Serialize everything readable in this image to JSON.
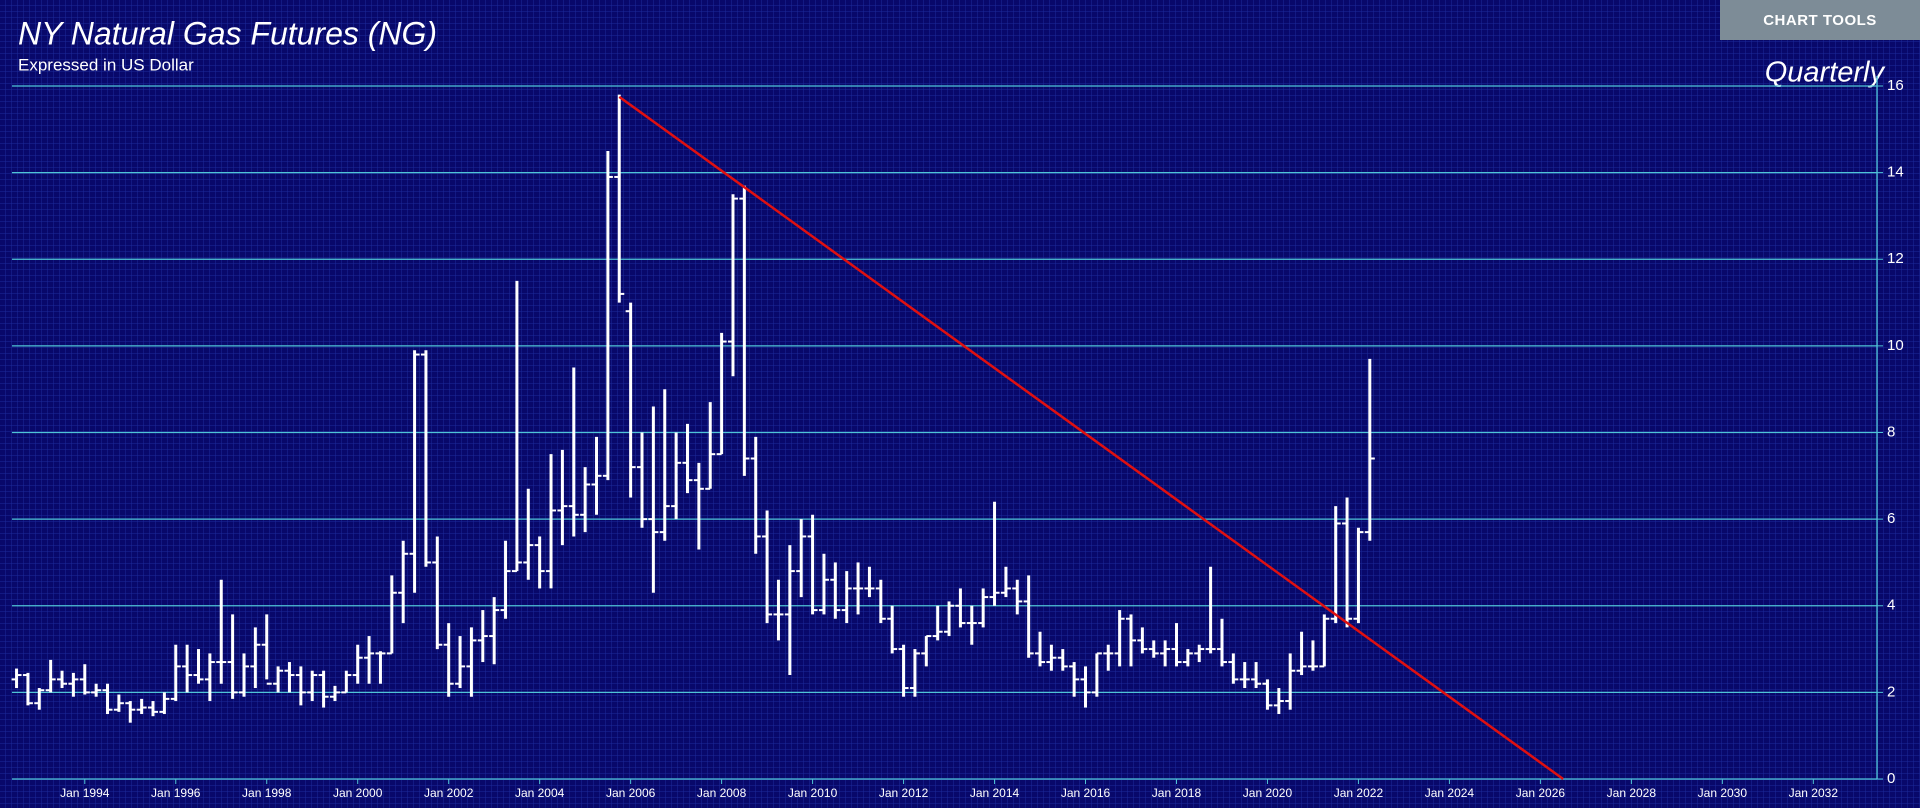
{
  "chart_data": {
    "type": "ohlc",
    "title": "NY Natural Gas Futures (NG)",
    "subtitle": "Expressed in US Dollar",
    "period": "Quarterly",
    "button": "CHART TOOLS",
    "color": "#ffffff",
    "grid": true,
    "x": [
      1992.5,
      1992.75,
      1993,
      1993.25,
      1993.5,
      1993.75,
      1994,
      1994.25,
      1994.5,
      1994.75,
      1995,
      1995.25,
      1995.5,
      1995.75,
      1996,
      1996.25,
      1996.5,
      1996.75,
      1997,
      1997.25,
      1997.5,
      1997.75,
      1998,
      1998.25,
      1998.5,
      1998.75,
      1999,
      1999.25,
      1999.5,
      1999.75,
      2000,
      2000.25,
      2000.5,
      2000.75,
      2001,
      2001.25,
      2001.5,
      2001.75,
      2002,
      2002.25,
      2002.5,
      2002.75,
      2003,
      2003.25,
      2003.5,
      2003.75,
      2004,
      2004.25,
      2004.5,
      2004.75,
      2005,
      2005.25,
      2005.5,
      2005.75,
      2006,
      2006.25,
      2006.5,
      2006.75,
      2007,
      2007.25,
      2007.5,
      2007.75,
      2008,
      2008.25,
      2008.5,
      2008.75,
      2009,
      2009.25,
      2009.5,
      2009.75,
      2010,
      2010.25,
      2010.5,
      2010.75,
      2011,
      2011.25,
      2011.5,
      2011.75,
      2012,
      2012.25,
      2012.5,
      2012.75,
      2013,
      2013.25,
      2013.5,
      2013.75,
      2014,
      2014.25,
      2014.5,
      2014.75,
      2015,
      2015.25,
      2015.5,
      2015.75,
      2016,
      2016.25,
      2016.5,
      2016.75,
      2017,
      2017.25,
      2017.5,
      2017.75,
      2018,
      2018.25,
      2018.5,
      2018.75,
      2019,
      2019.25,
      2019.5,
      2019.75,
      2020,
      2020.25,
      2020.5,
      2020.75,
      2021,
      2021.25,
      2021.5,
      2021.75,
      2022,
      2022.25
    ],
    "open": [
      2.3,
      2.4,
      1.75,
      2.05,
      2.3,
      2.2,
      2.3,
      2.0,
      2.05,
      1.6,
      1.75,
      1.6,
      1.65,
      1.55,
      1.85,
      2.6,
      2.4,
      2.3,
      2.7,
      2.7,
      2.0,
      2.6,
      3.1,
      2.2,
      2.5,
      2.4,
      2.0,
      2.4,
      1.9,
      2.0,
      2.4,
      2.8,
      2.9,
      2.9,
      4.3,
      5.2,
      9.8,
      5.0,
      3.1,
      2.2,
      2.6,
      3.2,
      3.3,
      3.9,
      4.8,
      5.0,
      5.4,
      4.8,
      6.2,
      6.3,
      6.1,
      6.8,
      7.0,
      13.9,
      10.8,
      7.2,
      6.0,
      5.7,
      6.3,
      7.3,
      6.9,
      6.7,
      7.5,
      10.1,
      13.4,
      7.4,
      5.6,
      3.8,
      3.8,
      4.8,
      5.6,
      3.9,
      4.6,
      3.9,
      4.4,
      4.4,
      4.4,
      3.7,
      3.0,
      2.1,
      2.9,
      3.3,
      3.4,
      4.0,
      3.6,
      3.6,
      4.2,
      4.3,
      4.4,
      4.1,
      2.9,
      2.7,
      2.8,
      2.6,
      2.3,
      2.0,
      2.9,
      2.9,
      3.7,
      3.2,
      3.0,
      2.9,
      3.0,
      2.7,
      2.9,
      3.0,
      3.0,
      2.7,
      2.3,
      2.3,
      2.2,
      1.7,
      1.8,
      2.5,
      2.6,
      2.6,
      3.7,
      5.9,
      3.7,
      5.7
    ],
    "high": [
      2.55,
      2.45,
      2.1,
      2.75,
      2.5,
      2.45,
      2.65,
      2.2,
      2.2,
      1.95,
      1.8,
      1.85,
      1.8,
      2.0,
      3.1,
      3.1,
      3.0,
      2.9,
      4.6,
      3.8,
      2.9,
      3.5,
      3.8,
      2.6,
      2.7,
      2.6,
      2.5,
      2.5,
      2.15,
      2.5,
      3.1,
      3.3,
      2.95,
      4.7,
      5.5,
      9.9,
      9.9,
      5.6,
      3.6,
      3.3,
      3.5,
      3.9,
      4.2,
      5.5,
      11.5,
      6.7,
      5.6,
      7.5,
      7.6,
      9.5,
      7.2,
      7.9,
      14.5,
      15.8,
      11.0,
      8.0,
      8.6,
      9.0,
      8.0,
      8.2,
      7.3,
      8.7,
      10.3,
      13.5,
      13.7,
      7.9,
      6.2,
      4.6,
      5.4,
      6.0,
      6.1,
      5.2,
      5.0,
      4.8,
      5.0,
      4.9,
      4.6,
      4.0,
      3.1,
      3.0,
      3.3,
      4.0,
      4.1,
      4.4,
      4.0,
      4.4,
      6.4,
      4.9,
      4.6,
      4.7,
      3.4,
      3.1,
      3.0,
      2.7,
      2.6,
      2.9,
      3.1,
      3.9,
      3.8,
      3.5,
      3.2,
      3.2,
      3.6,
      3.0,
      3.1,
      4.9,
      3.7,
      2.9,
      2.7,
      2.7,
      2.3,
      2.1,
      2.9,
      3.4,
      3.2,
      3.8,
      6.3,
      6.5,
      5.8,
      9.7
    ],
    "low": [
      2.1,
      1.7,
      1.6,
      2.0,
      2.1,
      1.9,
      1.95,
      1.9,
      1.5,
      1.55,
      1.3,
      1.5,
      1.45,
      1.5,
      1.8,
      2.0,
      2.2,
      1.8,
      2.2,
      1.85,
      1.9,
      2.1,
      2.3,
      2.0,
      2.0,
      1.7,
      1.8,
      1.65,
      1.8,
      2.0,
      2.2,
      2.2,
      2.2,
      2.9,
      3.6,
      4.3,
      4.9,
      3.0,
      1.9,
      2.1,
      1.9,
      2.7,
      2.65,
      3.7,
      4.8,
      4.6,
      4.4,
      4.4,
      5.4,
      5.6,
      5.7,
      6.1,
      6.9,
      11.0,
      6.5,
      5.8,
      4.3,
      5.5,
      6.0,
      6.6,
      5.3,
      6.7,
      7.5,
      9.3,
      7.0,
      5.2,
      3.6,
      3.2,
      2.4,
      4.2,
      3.8,
      3.8,
      3.7,
      3.6,
      3.8,
      4.2,
      3.6,
      2.9,
      1.9,
      1.9,
      2.6,
      3.2,
      3.3,
      3.5,
      3.1,
      3.5,
      4.0,
      4.2,
      3.8,
      2.8,
      2.6,
      2.5,
      2.5,
      1.9,
      1.65,
      1.9,
      2.5,
      2.6,
      2.6,
      2.9,
      2.8,
      2.6,
      2.6,
      2.6,
      2.7,
      2.9,
      2.6,
      2.2,
      2.1,
      2.1,
      1.6,
      1.5,
      1.6,
      2.4,
      2.5,
      2.6,
      3.6,
      3.5,
      3.6,
      5.5
    ],
    "close": [
      2.4,
      1.75,
      2.05,
      2.3,
      2.2,
      2.3,
      2.0,
      2.05,
      1.6,
      1.75,
      1.6,
      1.65,
      1.55,
      1.85,
      2.6,
      2.4,
      2.3,
      2.7,
      2.7,
      2.0,
      2.6,
      3.1,
      2.2,
      2.5,
      2.4,
      2.0,
      2.4,
      1.9,
      2.0,
      2.4,
      2.8,
      2.9,
      2.9,
      4.3,
      5.2,
      9.8,
      5.0,
      3.1,
      2.2,
      2.6,
      3.2,
      3.3,
      3.9,
      4.8,
      5.0,
      5.4,
      4.8,
      6.2,
      6.3,
      6.1,
      6.8,
      7.0,
      13.9,
      11.2,
      7.2,
      6.0,
      5.7,
      6.3,
      7.3,
      6.9,
      6.7,
      7.5,
      10.1,
      13.4,
      7.4,
      5.6,
      3.8,
      3.8,
      4.8,
      5.6,
      3.9,
      4.6,
      3.9,
      4.4,
      4.4,
      4.4,
      3.7,
      3.0,
      2.1,
      2.9,
      3.3,
      3.4,
      4.0,
      3.6,
      3.6,
      4.2,
      4.3,
      4.4,
      4.1,
      2.9,
      2.7,
      2.8,
      2.6,
      2.3,
      2.0,
      2.9,
      2.9,
      3.7,
      3.2,
      3.0,
      2.9,
      3.0,
      2.7,
      2.9,
      3.0,
      3.0,
      2.7,
      2.3,
      2.3,
      2.2,
      1.7,
      1.8,
      2.5,
      2.6,
      2.6,
      3.7,
      5.9,
      3.7,
      5.7,
      7.4
    ],
    "trend_line": {
      "color": "#e01010",
      "x": [
        2005.75,
        2026.5
      ],
      "y": [
        15.75,
        0
      ]
    },
    "xlim": [
      1992.4,
      2033.4
    ],
    "ylim": [
      0,
      16
    ],
    "xticks": [
      {
        "value": 1994,
        "label": "Jan 1994"
      },
      {
        "value": 1996,
        "label": "Jan 1996"
      },
      {
        "value": 1998,
        "label": "Jan 1998"
      },
      {
        "value": 2000,
        "label": "Jan 2000"
      },
      {
        "value": 2002,
        "label": "Jan 2002"
      },
      {
        "value": 2004,
        "label": "Jan 2004"
      },
      {
        "value": 2006,
        "label": "Jan 2006"
      },
      {
        "value": 2008,
        "label": "Jan 2008"
      },
      {
        "value": 2010,
        "label": "Jan 2010"
      },
      {
        "value": 2012,
        "label": "Jan 2012"
      },
      {
        "value": 2014,
        "label": "Jan 2014"
      },
      {
        "value": 2016,
        "label": "Jan 2016"
      },
      {
        "value": 2018,
        "label": "Jan 2018"
      },
      {
        "value": 2020,
        "label": "Jan 2020"
      },
      {
        "value": 2022,
        "label": "Jan 2022"
      },
      {
        "value": 2024,
        "label": "Jan 2024"
      },
      {
        "value": 2026,
        "label": "Jan 2026"
      },
      {
        "value": 2028,
        "label": "Jan 2028"
      },
      {
        "value": 2030,
        "label": "Jan 2030"
      },
      {
        "value": 2032,
        "label": "Jan 2032"
      }
    ],
    "yticks": [
      0,
      2,
      4,
      6,
      8,
      10,
      12,
      14,
      16
    ]
  }
}
